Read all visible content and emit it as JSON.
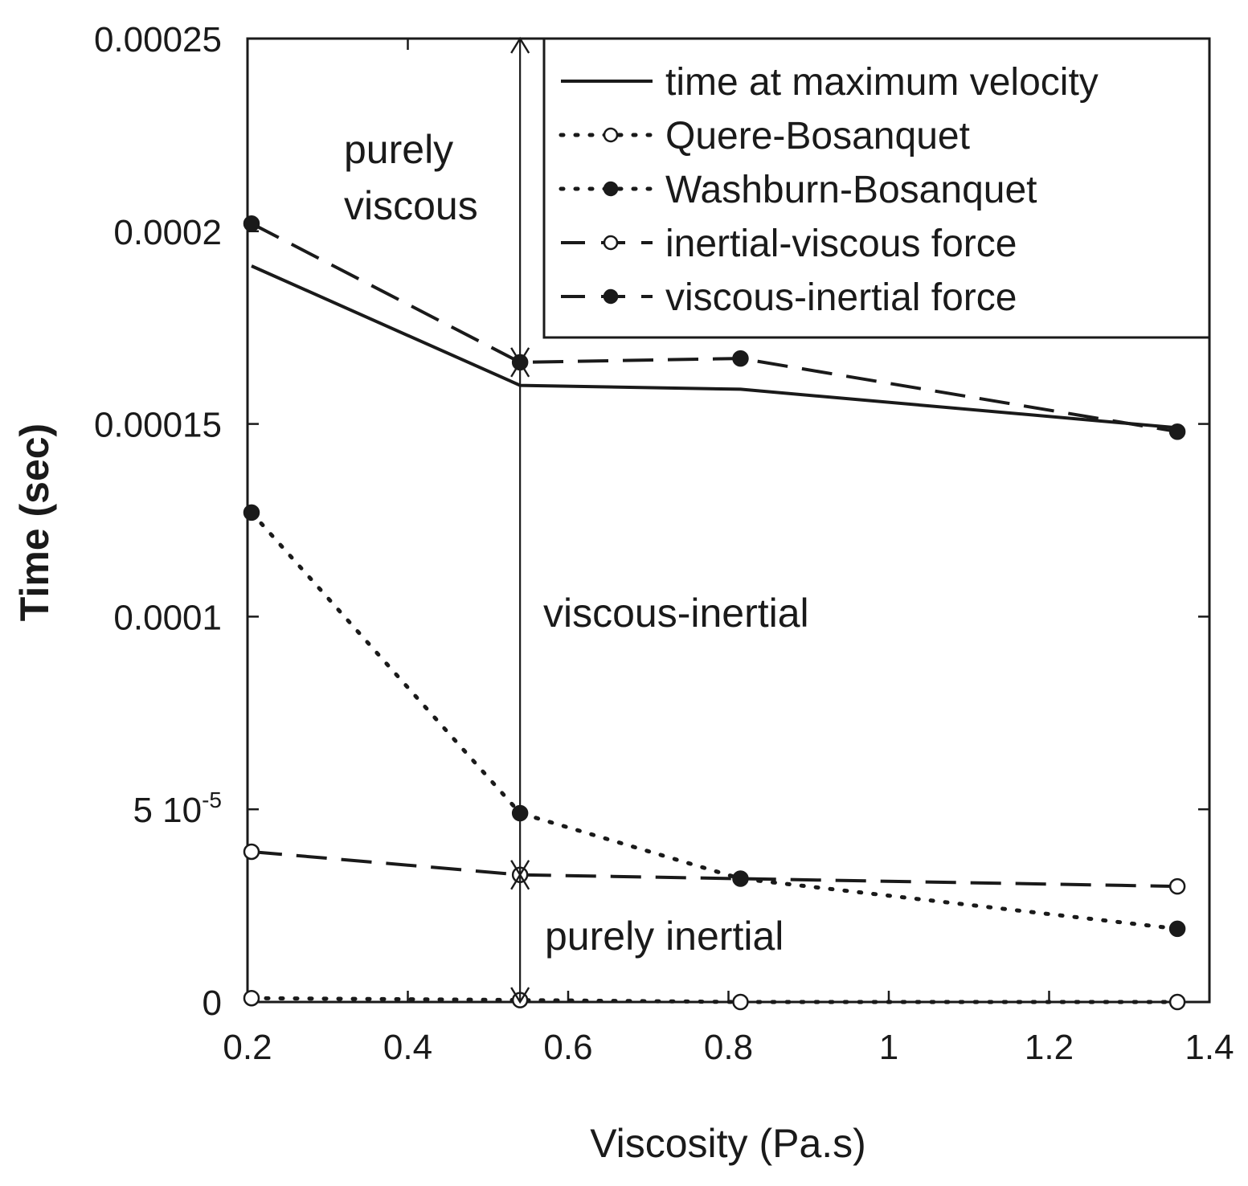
{
  "chart_data": {
    "type": "line",
    "xlabel": "Viscosity (Pa.s)",
    "ylabel": "Time (sec)",
    "xlim": [
      0.2,
      1.4
    ],
    "ylim": [
      0,
      0.00025
    ],
    "grid": false,
    "legend_position": "top-right",
    "x_ticks": [
      {
        "value": 0.2,
        "label": "0.2"
      },
      {
        "value": 0.4,
        "label": "0.4"
      },
      {
        "value": 0.6,
        "label": "0.6"
      },
      {
        "value": 0.8,
        "label": "0.8"
      },
      {
        "value": 1.0,
        "label": "1"
      },
      {
        "value": 1.2,
        "label": "1.2"
      },
      {
        "value": 1.4,
        "label": "1.4"
      }
    ],
    "y_ticks": [
      {
        "value": 0,
        "label": "0"
      },
      {
        "value": 5e-05,
        "label": "5 10",
        "sup": "-5"
      },
      {
        "value": 0.0001,
        "label": "0.0001"
      },
      {
        "value": 0.00015,
        "label": "0.00015"
      },
      {
        "value": 0.0002,
        "label": "0.0002"
      },
      {
        "value": 0.00025,
        "label": "0.00025"
      }
    ],
    "series": [
      {
        "name": "time at maximum velocity",
        "style": "solid",
        "marker": "none",
        "x": [
          0.205,
          0.54,
          0.815,
          1.36
        ],
        "values": [
          0.000191,
          0.00016,
          0.000159,
          0.000149
        ]
      },
      {
        "name": "Quere-Bosanquet",
        "style": "dotted",
        "marker": "open",
        "x": [
          0.205,
          0.54,
          0.815,
          1.36
        ],
        "values": [
          1e-06,
          5e-07,
          0.0,
          0.0
        ]
      },
      {
        "name": "Washburn-Bosanquet",
        "style": "dotted",
        "marker": "filled",
        "x": [
          0.205,
          0.54,
          0.815,
          1.36
        ],
        "values": [
          0.000127,
          4.9e-05,
          3.2e-05,
          1.9e-05
        ]
      },
      {
        "name": "inertial-viscous force",
        "style": "dashed",
        "marker": "open",
        "x": [
          0.205,
          0.54,
          1.36
        ],
        "values": [
          3.9e-05,
          3.3e-05,
          3e-05
        ]
      },
      {
        "name": "viscous-inertial force",
        "style": "dashed",
        "marker": "filled",
        "x": [
          0.205,
          0.54,
          0.815,
          1.36
        ],
        "values": [
          0.000202,
          0.000166,
          0.000167,
          0.000148
        ]
      }
    ],
    "annotations": [
      {
        "name": "purely-viscous",
        "lines": [
          "purely",
          "viscous"
        ]
      },
      {
        "name": "viscous-inertial",
        "lines": [
          "viscous-inertial"
        ]
      },
      {
        "name": "purely-inertial",
        "lines": [
          "purely inertial"
        ]
      }
    ],
    "regime_boundary": {
      "x": 0.54,
      "arrows": [
        {
          "name": "purely-viscous",
          "from": 0.00025,
          "to": 0.000166
        },
        {
          "name": "viscous-inertial",
          "from": 0.000166,
          "to": 3.3e-05
        },
        {
          "name": "purely-inertial",
          "from": 3.3e-05,
          "to": 0.0
        }
      ]
    }
  }
}
